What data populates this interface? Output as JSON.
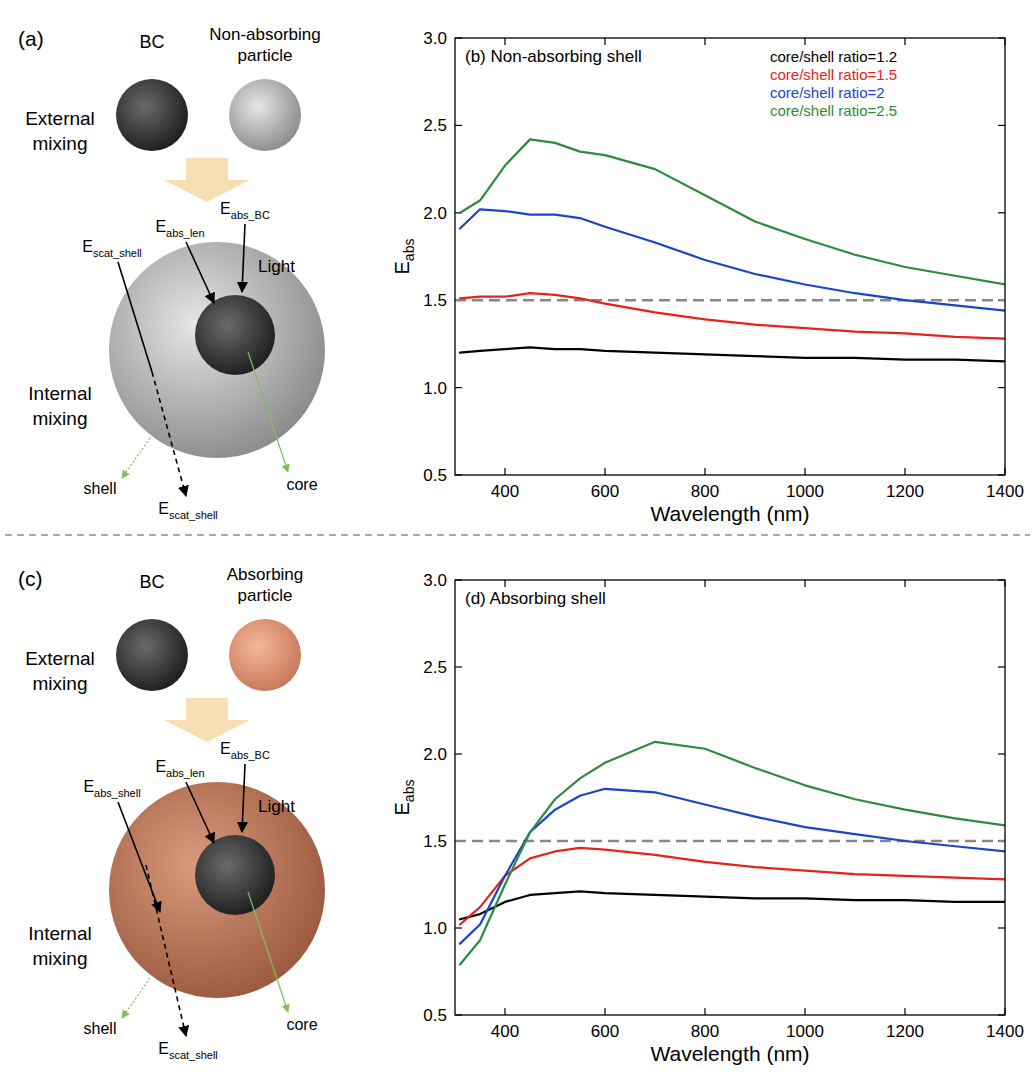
{
  "diagrams": [
    {
      "panel_label": "(a)",
      "core_particle": "BC",
      "other_particle": "Non-absorbing particle",
      "external_label": "External mixing",
      "internal_label": "Internal mixing",
      "light": "Light",
      "shell": "shell",
      "core": "core",
      "shell_absorbing": false,
      "arrows": [
        {
          "main": "E",
          "sub": "scat_shell"
        },
        {
          "main": "E",
          "sub": "abs_len"
        },
        {
          "main": "E",
          "sub": "abs_BC"
        }
      ],
      "exit_label": {
        "main": "E",
        "sub": "scat_shell"
      }
    },
    {
      "panel_label": "(c)",
      "core_particle": "BC",
      "other_particle": "Absorbing particle",
      "external_label": "External mixing",
      "internal_label": "Internal mixing",
      "light": "Light",
      "shell": "shell",
      "core": "core",
      "shell_absorbing": true,
      "arrows": [
        {
          "main": "E",
          "sub": "abs_shell"
        },
        {
          "main": "E",
          "sub": "abs_len"
        },
        {
          "main": "E",
          "sub": "abs_BC"
        }
      ],
      "exit_label": {
        "main": "E",
        "sub": "scat_shell"
      }
    }
  ],
  "chart_data": [
    {
      "type": "line",
      "title": "(b) Non-absorbing shell",
      "xlabel": "Wavelength (nm)",
      "ylabel": {
        "main": "E",
        "sub": "abs"
      },
      "x": [
        310,
        350,
        400,
        450,
        500,
        550,
        600,
        700,
        800,
        900,
        1000,
        1100,
        1200,
        1300,
        1400
      ],
      "xlim": [
        300,
        1400
      ],
      "xticks": [
        400,
        600,
        800,
        1000,
        1200,
        1400
      ],
      "ylim": [
        0.5,
        3.0
      ],
      "yticks": [
        0.5,
        {
          "value": 1,
          "label": "1.0"
        },
        1.5,
        {
          "value": 2,
          "label": "2.0"
        },
        2.5,
        {
          "value": 3,
          "label": "3.0"
        }
      ],
      "reference_lines": [
        {
          "y": 1.5,
          "color": "#888888",
          "line_style": "dashed"
        }
      ],
      "legend": "upper right",
      "series": [
        {
          "name": "core/shell ratio=1.2",
          "color": "#000000",
          "values": [
            1.2,
            1.21,
            1.22,
            1.23,
            1.22,
            1.22,
            1.21,
            1.2,
            1.19,
            1.18,
            1.17,
            1.17,
            1.16,
            1.16,
            1.15
          ]
        },
        {
          "name": "core/shell ratio=1.5",
          "color": "#e8221b",
          "values": [
            1.51,
            1.52,
            1.52,
            1.54,
            1.53,
            1.51,
            1.48,
            1.43,
            1.39,
            1.36,
            1.34,
            1.32,
            1.31,
            1.29,
            1.28
          ]
        },
        {
          "name": "core/shell ratio=2",
          "color": "#1c44c9",
          "values": [
            1.91,
            2.02,
            2.01,
            1.99,
            1.99,
            1.97,
            1.92,
            1.83,
            1.73,
            1.65,
            1.59,
            1.54,
            1.5,
            1.47,
            1.44
          ]
        },
        {
          "name": "core/shell ratio=2.5",
          "color": "#2e8b3c",
          "values": [
            2.0,
            2.07,
            2.27,
            2.42,
            2.4,
            2.35,
            2.33,
            2.25,
            2.1,
            1.95,
            1.85,
            1.76,
            1.69,
            1.64,
            1.59
          ]
        }
      ]
    },
    {
      "type": "line",
      "title": "(d) Absorbing shell",
      "xlabel": "Wavelength (nm)",
      "ylabel": {
        "main": "E",
        "sub": "abs"
      },
      "x": [
        310,
        350,
        400,
        450,
        500,
        550,
        600,
        700,
        800,
        900,
        1000,
        1100,
        1200,
        1300,
        1400
      ],
      "xlim": [
        300,
        1400
      ],
      "xticks": [
        400,
        600,
        800,
        1000,
        1200,
        1400
      ],
      "ylim": [
        0.5,
        3.0
      ],
      "yticks": [
        0.5,
        {
          "value": 1,
          "label": "1.0"
        },
        1.5,
        {
          "value": 2,
          "label": "2.0"
        },
        2.5,
        {
          "value": 3,
          "label": "3.0"
        }
      ],
      "reference_lines": [
        {
          "y": 1.5,
          "color": "#888888",
          "line_style": "dashed"
        }
      ],
      "series": [
        {
          "color": "#000000",
          "values": [
            1.05,
            1.08,
            1.15,
            1.19,
            1.2,
            1.21,
            1.2,
            1.19,
            1.18,
            1.17,
            1.17,
            1.16,
            1.16,
            1.15,
            1.15
          ]
        },
        {
          "color": "#e8221b",
          "values": [
            1.02,
            1.12,
            1.3,
            1.4,
            1.44,
            1.46,
            1.45,
            1.42,
            1.38,
            1.35,
            1.33,
            1.31,
            1.3,
            1.29,
            1.28
          ]
        },
        {
          "color": "#1c44c9",
          "values": [
            0.91,
            1.02,
            1.3,
            1.55,
            1.68,
            1.76,
            1.8,
            1.78,
            1.71,
            1.64,
            1.58,
            1.54,
            1.5,
            1.47,
            1.44
          ]
        },
        {
          "color": "#2e8b3c",
          "values": [
            0.79,
            0.93,
            1.25,
            1.55,
            1.74,
            1.86,
            1.95,
            2.07,
            2.03,
            1.92,
            1.82,
            1.74,
            1.68,
            1.63,
            1.59
          ]
        }
      ]
    }
  ]
}
